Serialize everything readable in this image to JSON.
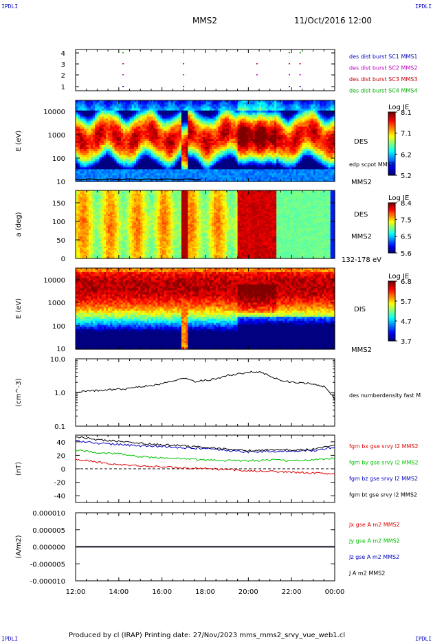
{
  "corners": {
    "top_left": "IPDLI",
    "top_right": "IPDLI",
    "bottom_left": "IPDLI",
    "bottom_right": "IPDLI"
  },
  "header": {
    "spacecraft": "MMS2",
    "datetime": "11/Oct/2016 12:00"
  },
  "footer": {
    "text": "Produced by cl (IRAP)   Printing date: 27/Nov/2023   mms_mms2_srvy_vue_web1.cl"
  },
  "colors": {
    "bx": "#e00000",
    "by": "#00c000",
    "bz": "#0000c0",
    "bt": "#000000",
    "mms1": "#0000c0",
    "mms2": "#c000c0",
    "mms3": "#c00000",
    "mms4": "#00b000"
  },
  "chart_data": [
    {
      "type": "scatter",
      "title": "",
      "ylabel": "",
      "yticks": [
        "1",
        "2",
        "3",
        "4"
      ],
      "legend": [
        "des dist burst SC1 MMS1",
        "des dist burst SC2 MMS2",
        "des dist burst SC3 MMS3",
        "des dist burst SC4 MMS4"
      ],
      "series": [
        {
          "name": "des dist burst SC1 MMS1",
          "y": 1,
          "x_hours": [
            2.2,
            5.0,
            9.9,
            10.4
          ]
        },
        {
          "name": "des dist burst SC2 MMS2",
          "y": 2,
          "x_hours": [
            2.2,
            5.0,
            8.4,
            9.9,
            10.4
          ]
        },
        {
          "name": "des dist burst SC3 MMS3",
          "y": 3,
          "x_hours": [
            2.2,
            5.0,
            8.4,
            9.9,
            10.4
          ]
        },
        {
          "name": "des dist burst SC4 MMS4",
          "y": 4,
          "x_hours": [
            2.2,
            5.0,
            9.9,
            10.4
          ]
        }
      ]
    },
    {
      "type": "heatmap",
      "ylabel": "E (eV)",
      "yticks": [
        "10",
        "100",
        "1000",
        "10000"
      ],
      "right_labels": [
        "DES",
        "edp scpot MMS2",
        "MMS2"
      ],
      "colorbar": {
        "title": "Log JE",
        "ticks": [
          "8.1",
          "7.1",
          "6.2",
          "5.2"
        ],
        "range": [
          5.2,
          8.1
        ]
      }
    },
    {
      "type": "heatmap",
      "ylabel": "a (deg)",
      "yticks": [
        "0",
        "50",
        "100",
        "150"
      ],
      "right_labels": [
        "DES",
        "MMS2",
        "132-178 eV"
      ],
      "colorbar": {
        "title": "Log JE",
        "ticks": [
          "8.4",
          "7.5",
          "6.5",
          "5.6"
        ],
        "range": [
          5.6,
          8.4
        ]
      }
    },
    {
      "type": "heatmap",
      "ylabel": "E (eV)",
      "yticks": [
        "10",
        "100",
        "1000",
        "10000"
      ],
      "right_labels": [
        "DIS",
        "MMS2"
      ],
      "colorbar": {
        "title": "Log JE",
        "ticks": [
          "6.8",
          "5.7",
          "4.7",
          "3.7"
        ],
        "range": [
          3.7,
          6.8
        ]
      }
    },
    {
      "type": "line",
      "ylabel": "(cm^-3)",
      "yticks": [
        "0.1",
        "1.0",
        "10.0"
      ],
      "yscale": "log",
      "ylim": [
        0.1,
        10
      ],
      "series": [
        {
          "name": "des numberdensity fast M",
          "x_hours": [
            0,
            0.5,
            1,
            1.5,
            2,
            2.5,
            3,
            3.5,
            4,
            4.5,
            5,
            5.5,
            6,
            6.5,
            7,
            7.5,
            8,
            8.5,
            9,
            9.5,
            10,
            10.5,
            11,
            11.5,
            12
          ],
          "values": [
            1.0,
            1.1,
            1.15,
            1.2,
            1.25,
            1.3,
            1.5,
            1.6,
            1.8,
            2.2,
            2.8,
            2.1,
            2.3,
            2.5,
            3.2,
            3.5,
            4.0,
            4.1,
            3.0,
            2.3,
            2.0,
            1.9,
            1.8,
            1.5,
            0.6
          ]
        }
      ]
    },
    {
      "type": "line",
      "ylabel": "(nT)",
      "yticks": [
        "-40",
        "-20",
        "0",
        "20",
        "40"
      ],
      "ylim": [
        -50,
        50
      ],
      "series": [
        {
          "name": "fgm bx gse srvy l2 MMS2",
          "x_hours": [
            0,
            1,
            2,
            3,
            4,
            5,
            6,
            7,
            8,
            9,
            10,
            11,
            12
          ],
          "values": [
            14,
            10,
            6,
            4,
            3,
            1,
            0,
            -1,
            -3,
            -4,
            -5,
            -6,
            -8
          ]
        },
        {
          "name": "fgm by gse srvy l2 MMS2",
          "x_hours": [
            0,
            1,
            2,
            3,
            4,
            5,
            6,
            7,
            8,
            9,
            10,
            11,
            12
          ],
          "values": [
            28,
            24,
            22,
            18,
            16,
            15,
            13,
            12,
            12,
            13,
            12,
            13,
            16
          ]
        },
        {
          "name": "fgm bz gse srvy l2 MMS2",
          "x_hours": [
            0,
            1,
            2,
            3,
            4,
            5,
            6,
            7,
            8,
            9,
            10,
            11,
            12
          ],
          "values": [
            42,
            38,
            36,
            34,
            33,
            31,
            30,
            27,
            25,
            26,
            26,
            27,
            32
          ]
        },
        {
          "name": "fgm bt gse srvy l2 MMS2",
          "x_hours": [
            0,
            1,
            2,
            3,
            4,
            5,
            6,
            7,
            8,
            9,
            10,
            11,
            12
          ],
          "values": [
            48,
            43,
            41,
            38,
            36,
            34,
            32,
            29,
            27,
            28,
            28,
            29,
            35
          ]
        }
      ]
    },
    {
      "type": "line",
      "ylabel": "(A/m2)",
      "yticks": [
        "-0.000010",
        "-0.000005",
        "0.000000",
        "0.000005",
        "0.000010"
      ],
      "ylim": [
        -1e-05,
        1e-05
      ],
      "series": [
        {
          "name": "Jx gse A m2 MMS2",
          "x_hours": [
            0,
            12
          ],
          "values": [
            0,
            0
          ]
        },
        {
          "name": "Jy gse A m2 MMS2",
          "x_hours": [
            0,
            12
          ],
          "values": [
            0,
            0
          ]
        },
        {
          "name": "Jz gse A m2 MMS2",
          "x_hours": [
            0,
            12
          ],
          "values": [
            0,
            0
          ]
        },
        {
          "name": "J A m2 MMS2",
          "x_hours": [
            0,
            12
          ],
          "values": [
            0,
            0
          ]
        }
      ]
    }
  ],
  "x_axis": {
    "ticks": [
      "12:00",
      "14:00",
      "16:00",
      "18:00",
      "20:00",
      "22:00",
      "00:00"
    ],
    "range_hours": [
      0,
      12
    ]
  }
}
